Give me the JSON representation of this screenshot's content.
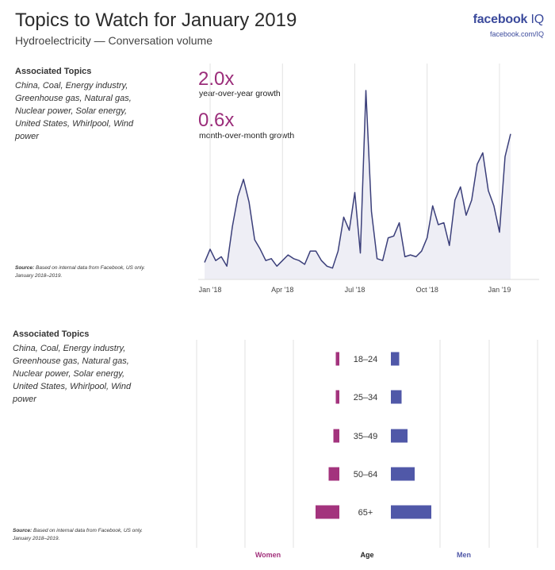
{
  "header": {
    "title": "Topics to Watch for January 2019",
    "subtitle": "Hydroelectricity — Conversation volume"
  },
  "brand": {
    "logo_main": "facebook",
    "logo_suffix": "IQ",
    "url": "facebook.com/IQ",
    "color": "#3b4a9c"
  },
  "top_section": {
    "topics_heading": "Associated Topics",
    "topics_text": "China, Coal, Energy industry, Greenhouse gas, Natural gas, Nuclear power, Solar energy, United States, Whirlpool, Wind power",
    "source_label": "Source:",
    "source_text": "Based on internal data from Facebook, US only.",
    "source_period": "January 2018–2019.",
    "stat1_value": "2.0x",
    "stat1_label": "year-over-year growth",
    "stat2_value": "0.6x",
    "stat2_label": "month-over-month growth"
  },
  "bottom_section": {
    "topics_heading": "Associated Topics",
    "topics_text": "China, Coal, Energy industry, Greenhouse gas, Natural gas, Nuclear power, Solar energy, United States, Whirlpool, Wind power",
    "source_label": "Source:",
    "source_text": "Based on internal data from Facebook, US only.",
    "source_period": "January 2018–2019."
  },
  "colors": {
    "line": "#3b3f7a",
    "area": "#eeeef5",
    "women": "#a3337d",
    "men": "#5058a8",
    "accent": "#9b2d7a"
  },
  "chart_data": [
    {
      "type": "area",
      "title": "",
      "xlabel": "",
      "ylabel": "",
      "grid": "vertical",
      "tick_labels": [
        "Jan '18",
        "Apr '18",
        "Jul '18",
        "Oct '18",
        "Jan '19"
      ],
      "tick_positions": [
        1,
        14,
        27,
        40,
        53
      ],
      "ylim": [
        0,
        100
      ],
      "series": [
        {
          "values": [
            9,
            16,
            10,
            12,
            7,
            28,
            44,
            53,
            41,
            21,
            16,
            10,
            11,
            7,
            10,
            13,
            11,
            10,
            8,
            15,
            15,
            10,
            7,
            6,
            15,
            33,
            26,
            46,
            14,
            100,
            36,
            11,
            10,
            22,
            23,
            30,
            12,
            13,
            12,
            15,
            22,
            39,
            29,
            30,
            18,
            42,
            49,
            34,
            42,
            61,
            67,
            47,
            39,
            25,
            65,
            77
          ]
        }
      ]
    },
    {
      "type": "bar",
      "title": "",
      "orientation": "horizontal-diverging",
      "categories": [
        "18–24",
        "25–34",
        "35–49",
        "50–64",
        "65+"
      ],
      "center_label": "Age",
      "series": [
        {
          "name": "Women",
          "values": [
            1.5,
            1.5,
            2.5,
            4.5,
            10
          ]
        },
        {
          "name": "Men",
          "values": [
            3.5,
            4.5,
            7,
            10,
            17
          ]
        }
      ],
      "xlim": [
        0,
        20
      ],
      "grid": "vertical"
    }
  ]
}
